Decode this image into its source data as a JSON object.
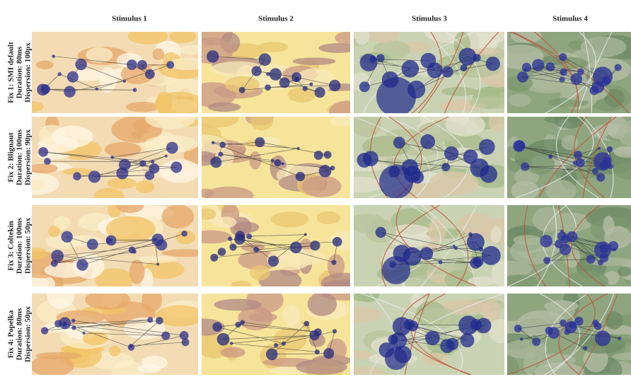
{
  "columns": [
    "Stimulus 1",
    "Stimulus 2",
    "Stimulus 3",
    "Stimulus 4"
  ],
  "rows": [
    {
      "lines": [
        "Fix 1: SMI default",
        "Duration: 80ms",
        "Dispersion: 100px"
      ]
    },
    {
      "lines": [
        "Fix 2: Blignaut",
        "Duration: 100ms",
        "Dispersion: 90px"
      ]
    },
    {
      "lines": [
        "Fix 3: Coltekin",
        "Duration: 100ms",
        "Dispersion: 50px"
      ]
    },
    {
      "lines": [
        "Fix 4: Popelka",
        "Duration: 80ms",
        "Dispersion: 50px"
      ]
    }
  ]
}
